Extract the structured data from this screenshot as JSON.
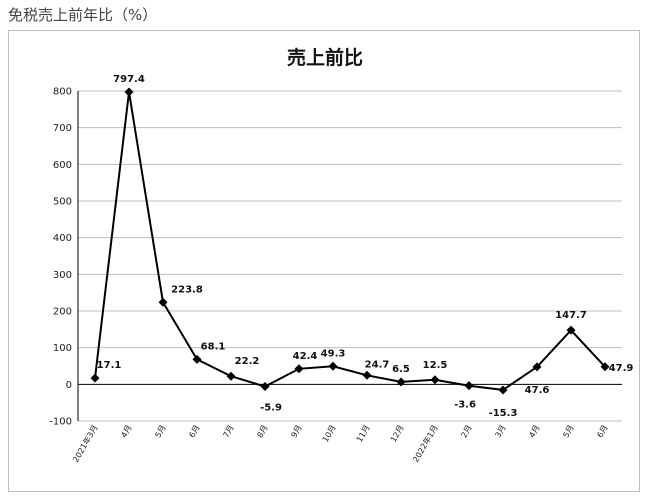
{
  "page": {
    "heading": "免税売上前年比（%）"
  },
  "chart_data": {
    "type": "line",
    "title": "売上前比",
    "xlabel": "",
    "ylabel": "",
    "categories": [
      "2021年3月",
      "4月",
      "5月",
      "6月",
      "7月",
      "8月",
      "9月",
      "10月",
      "11月",
      "12月",
      "2022年1月",
      "2月",
      "3月",
      "4月",
      "5月",
      "6月"
    ],
    "values": [
      17.1,
      797.4,
      223.8,
      68.1,
      22.2,
      -5.9,
      42.4,
      49.3,
      24.7,
      6.5,
      12.5,
      -3.6,
      -15.3,
      47.6,
      147.7,
      47.9
    ],
    "data_labels": [
      "17.1",
      "797.4",
      "223.8",
      "68.1",
      "22.2",
      "-5.9",
      "42.4",
      "49.3",
      "24.7",
      "6.5",
      "12.5",
      "-3.6",
      "-15.3",
      "47.6",
      "147.7",
      "47.9"
    ],
    "ylim": [
      -100,
      800
    ],
    "yticks": [
      -100,
      0,
      100,
      200,
      300,
      400,
      500,
      600,
      700,
      800
    ],
    "grid": true,
    "legend": "none",
    "colors": {
      "line": "#000000",
      "grid": "#bfbfbf",
      "axis": "#000000"
    }
  }
}
